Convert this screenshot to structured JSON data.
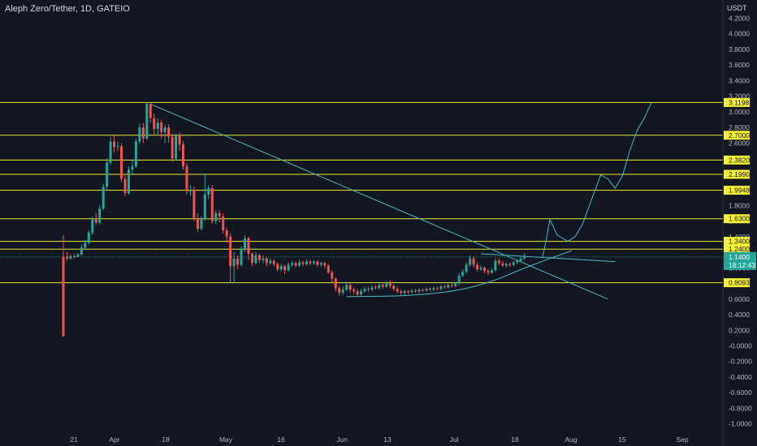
{
  "title": "Aleph Zero/Tether, 1D, GATEIO",
  "unit": "USDT",
  "colors": {
    "background": "#131722",
    "up": "#26a69a",
    "down": "#ef5350",
    "level_line": "#e8e83a",
    "level_badge": "#f5f032",
    "trend": "#4db6c4",
    "price_badge": "#26a69a",
    "axis_text": "#b2b5be"
  },
  "chart_data": {
    "type": "candlestick",
    "title": "Aleph Zero/Tether, 1D, GATEIO",
    "ylabel": "USDT",
    "ylim": [
      -1.1,
      4.5
    ],
    "y_ticks": [
      "4.2000",
      "4.0000",
      "3.8000",
      "3.6000",
      "3.4000",
      "3.2000",
      "3.0000",
      "2.8000",
      "2.6000",
      "2.4000",
      "2.2000",
      "2.0000",
      "1.8000",
      "1.6000",
      "1.4000",
      "1.2000",
      "1.0000",
      "0.8000",
      "0.6000",
      "0.4000",
      "0.2000",
      "-0.0000",
      "-0.2000",
      "-0.4000",
      "-0.6000",
      "-0.8000",
      "-1.0000"
    ],
    "x_ticks": [
      "21",
      "Apr",
      "18",
      "May",
      "16",
      "Jun",
      "13",
      "Jul",
      "18",
      "Aug",
      "15",
      "Sep"
    ],
    "horizontal_levels": [
      "3.1198",
      "2.7000",
      "2.3820",
      "2.1990",
      "1.9948",
      "1.6300",
      "1.3400",
      "1.2400",
      "0.8093"
    ],
    "current_price": {
      "price": "1.1400",
      "countdown": "16:12:43"
    },
    "candles": [
      {
        "o": 1.14,
        "c": 0.12,
        "h": 1.42,
        "l": 0.12
      },
      {
        "o": 1.14,
        "c": 1.12,
        "h": 1.2,
        "l": 1.09
      },
      {
        "o": 1.12,
        "c": 1.15,
        "h": 1.17,
        "l": 1.1
      },
      {
        "o": 1.15,
        "c": 1.14,
        "h": 1.18,
        "l": 1.12
      },
      {
        "o": 1.14,
        "c": 1.17,
        "h": 1.19,
        "l": 1.13
      },
      {
        "o": 1.17,
        "c": 1.26,
        "h": 1.3,
        "l": 1.16
      },
      {
        "o": 1.26,
        "c": 1.32,
        "h": 1.36,
        "l": 1.24
      },
      {
        "o": 1.32,
        "c": 1.45,
        "h": 1.48,
        "l": 1.3
      },
      {
        "o": 1.45,
        "c": 1.63,
        "h": 1.66,
        "l": 1.42
      },
      {
        "o": 1.63,
        "c": 1.58,
        "h": 1.7,
        "l": 1.55
      },
      {
        "o": 1.58,
        "c": 1.76,
        "h": 1.8,
        "l": 1.56
      },
      {
        "o": 1.76,
        "c": 2.04,
        "h": 2.08,
        "l": 1.74
      },
      {
        "o": 2.04,
        "c": 2.35,
        "h": 2.4,
        "l": 2.0
      },
      {
        "o": 2.35,
        "c": 2.62,
        "h": 2.68,
        "l": 2.32
      },
      {
        "o": 2.62,
        "c": 2.55,
        "h": 2.7,
        "l": 2.48
      },
      {
        "o": 2.55,
        "c": 2.56,
        "h": 2.62,
        "l": 2.5
      },
      {
        "o": 2.56,
        "c": 2.14,
        "h": 2.6,
        "l": 2.1
      },
      {
        "o": 2.14,
        "c": 1.96,
        "h": 2.2,
        "l": 1.92
      },
      {
        "o": 1.96,
        "c": 2.26,
        "h": 2.3,
        "l": 1.94
      },
      {
        "o": 2.26,
        "c": 2.3,
        "h": 2.38,
        "l": 2.2
      },
      {
        "o": 2.3,
        "c": 2.62,
        "h": 2.66,
        "l": 2.28
      },
      {
        "o": 2.62,
        "c": 2.8,
        "h": 2.85,
        "l": 2.58
      },
      {
        "o": 2.8,
        "c": 2.66,
        "h": 2.86,
        "l": 2.6
      },
      {
        "o": 2.66,
        "c": 3.1,
        "h": 3.12,
        "l": 2.64
      },
      {
        "o": 3.1,
        "c": 2.92,
        "h": 3.12,
        "l": 2.86
      },
      {
        "o": 2.92,
        "c": 2.78,
        "h": 2.98,
        "l": 2.7
      },
      {
        "o": 2.78,
        "c": 2.86,
        "h": 2.92,
        "l": 2.7
      },
      {
        "o": 2.86,
        "c": 2.74,
        "h": 2.9,
        "l": 2.66
      },
      {
        "o": 2.74,
        "c": 2.8,
        "h": 2.84,
        "l": 2.6
      },
      {
        "o": 2.8,
        "c": 2.68,
        "h": 2.84,
        "l": 2.6
      },
      {
        "o": 2.68,
        "c": 2.4,
        "h": 2.72,
        "l": 2.36
      },
      {
        "o": 2.4,
        "c": 2.7,
        "h": 2.72,
        "l": 2.38
      },
      {
        "o": 2.7,
        "c": 2.58,
        "h": 2.74,
        "l": 2.5
      },
      {
        "o": 2.58,
        "c": 2.3,
        "h": 2.62,
        "l": 2.26
      },
      {
        "o": 2.3,
        "c": 1.98,
        "h": 2.34,
        "l": 1.94
      },
      {
        "o": 1.98,
        "c": 2.0,
        "h": 2.06,
        "l": 1.92
      },
      {
        "o": 2.0,
        "c": 1.64,
        "h": 2.04,
        "l": 1.6
      },
      {
        "o": 1.64,
        "c": 1.5,
        "h": 1.7,
        "l": 1.46
      },
      {
        "o": 1.5,
        "c": 1.62,
        "h": 1.66,
        "l": 1.48
      },
      {
        "o": 1.62,
        "c": 1.94,
        "h": 2.2,
        "l": 1.6
      },
      {
        "o": 1.94,
        "c": 2.02,
        "h": 2.06,
        "l": 1.88
      },
      {
        "o": 2.02,
        "c": 1.6,
        "h": 2.06,
        "l": 1.56
      },
      {
        "o": 1.6,
        "c": 1.7,
        "h": 1.74,
        "l": 1.56
      },
      {
        "o": 1.7,
        "c": 1.66,
        "h": 1.74,
        "l": 1.58
      },
      {
        "o": 1.66,
        "c": 1.48,
        "h": 1.7,
        "l": 1.44
      },
      {
        "o": 1.48,
        "c": 1.4,
        "h": 1.52,
        "l": 1.32
      },
      {
        "o": 1.4,
        "c": 1.02,
        "h": 1.44,
        "l": 0.81
      },
      {
        "o": 1.02,
        "c": 1.12,
        "h": 1.2,
        "l": 0.81
      },
      {
        "o": 1.12,
        "c": 1.04,
        "h": 1.16,
        "l": 0.98
      },
      {
        "o": 1.04,
        "c": 1.24,
        "h": 1.28,
        "l": 1.02
      },
      {
        "o": 1.24,
        "c": 1.38,
        "h": 1.42,
        "l": 1.2
      },
      {
        "o": 1.38,
        "c": 1.18,
        "h": 1.4,
        "l": 1.1
      },
      {
        "o": 1.18,
        "c": 1.06,
        "h": 1.2,
        "l": 1.02
      },
      {
        "o": 1.06,
        "c": 1.16,
        "h": 1.2,
        "l": 1.04
      },
      {
        "o": 1.16,
        "c": 1.1,
        "h": 1.18,
        "l": 1.06
      },
      {
        "o": 1.1,
        "c": 1.12,
        "h": 1.16,
        "l": 1.06
      },
      {
        "o": 1.12,
        "c": 1.06,
        "h": 1.14,
        "l": 1.02
      },
      {
        "o": 1.06,
        "c": 1.09,
        "h": 1.12,
        "l": 1.04
      },
      {
        "o": 1.09,
        "c": 1.05,
        "h": 1.11,
        "l": 1.02
      },
      {
        "o": 1.05,
        "c": 0.98,
        "h": 1.07,
        "l": 0.95
      },
      {
        "o": 0.98,
        "c": 1.02,
        "h": 1.05,
        "l": 0.96
      },
      {
        "o": 1.02,
        "c": 0.97,
        "h": 1.04,
        "l": 0.92
      },
      {
        "o": 0.97,
        "c": 1.04,
        "h": 1.07,
        "l": 0.95
      },
      {
        "o": 1.04,
        "c": 1.06,
        "h": 1.09,
        "l": 1.01
      },
      {
        "o": 1.06,
        "c": 1.03,
        "h": 1.08,
        "l": 1.0
      },
      {
        "o": 1.03,
        "c": 1.07,
        "h": 1.1,
        "l": 1.01
      },
      {
        "o": 1.07,
        "c": 1.05,
        "h": 1.09,
        "l": 1.02
      },
      {
        "o": 1.05,
        "c": 1.08,
        "h": 1.11,
        "l": 1.03
      },
      {
        "o": 1.08,
        "c": 1.06,
        "h": 1.1,
        "l": 1.03
      },
      {
        "o": 1.06,
        "c": 1.08,
        "h": 1.1,
        "l": 1.04
      },
      {
        "o": 1.08,
        "c": 1.04,
        "h": 1.1,
        "l": 1.01
      },
      {
        "o": 1.04,
        "c": 1.06,
        "h": 1.08,
        "l": 1.01
      },
      {
        "o": 1.06,
        "c": 1.03,
        "h": 1.08,
        "l": 0.99
      },
      {
        "o": 1.03,
        "c": 0.94,
        "h": 1.05,
        "l": 0.92
      },
      {
        "o": 0.94,
        "c": 0.86,
        "h": 0.97,
        "l": 0.82
      },
      {
        "o": 0.86,
        "c": 0.74,
        "h": 0.88,
        "l": 0.7
      },
      {
        "o": 0.74,
        "c": 0.68,
        "h": 0.77,
        "l": 0.64
      },
      {
        "o": 0.68,
        "c": 0.72,
        "h": 0.76,
        "l": 0.65
      },
      {
        "o": 0.72,
        "c": 0.78,
        "h": 0.82,
        "l": 0.7
      },
      {
        "o": 0.78,
        "c": 0.72,
        "h": 0.8,
        "l": 0.68
      },
      {
        "o": 0.72,
        "c": 0.7,
        "h": 0.75,
        "l": 0.66
      },
      {
        "o": 0.7,
        "c": 0.66,
        "h": 0.73,
        "l": 0.63
      },
      {
        "o": 0.66,
        "c": 0.7,
        "h": 0.73,
        "l": 0.64
      },
      {
        "o": 0.7,
        "c": 0.73,
        "h": 0.76,
        "l": 0.68
      },
      {
        "o": 0.73,
        "c": 0.72,
        "h": 0.76,
        "l": 0.69
      },
      {
        "o": 0.72,
        "c": 0.75,
        "h": 0.78,
        "l": 0.7
      },
      {
        "o": 0.75,
        "c": 0.74,
        "h": 0.78,
        "l": 0.72
      },
      {
        "o": 0.74,
        "c": 0.78,
        "h": 0.8,
        "l": 0.72
      },
      {
        "o": 0.78,
        "c": 0.76,
        "h": 0.81,
        "l": 0.73
      },
      {
        "o": 0.76,
        "c": 0.8,
        "h": 0.83,
        "l": 0.74
      },
      {
        "o": 0.8,
        "c": 0.77,
        "h": 0.84,
        "l": 0.74
      },
      {
        "o": 0.77,
        "c": 0.73,
        "h": 0.79,
        "l": 0.7
      },
      {
        "o": 0.73,
        "c": 0.7,
        "h": 0.76,
        "l": 0.67
      },
      {
        "o": 0.7,
        "c": 0.68,
        "h": 0.72,
        "l": 0.65
      },
      {
        "o": 0.68,
        "c": 0.7,
        "h": 0.72,
        "l": 0.65
      },
      {
        "o": 0.7,
        "c": 0.69,
        "h": 0.72,
        "l": 0.66
      },
      {
        "o": 0.69,
        "c": 0.71,
        "h": 0.73,
        "l": 0.67
      },
      {
        "o": 0.71,
        "c": 0.7,
        "h": 0.73,
        "l": 0.68
      },
      {
        "o": 0.7,
        "c": 0.72,
        "h": 0.74,
        "l": 0.68
      },
      {
        "o": 0.72,
        "c": 0.71,
        "h": 0.74,
        "l": 0.69
      },
      {
        "o": 0.71,
        "c": 0.73,
        "h": 0.75,
        "l": 0.69
      },
      {
        "o": 0.73,
        "c": 0.72,
        "h": 0.75,
        "l": 0.7
      },
      {
        "o": 0.72,
        "c": 0.74,
        "h": 0.76,
        "l": 0.7
      },
      {
        "o": 0.74,
        "c": 0.73,
        "h": 0.76,
        "l": 0.71
      },
      {
        "o": 0.73,
        "c": 0.76,
        "h": 0.78,
        "l": 0.71
      },
      {
        "o": 0.76,
        "c": 0.75,
        "h": 0.78,
        "l": 0.73
      },
      {
        "o": 0.75,
        "c": 0.78,
        "h": 0.8,
        "l": 0.73
      },
      {
        "o": 0.78,
        "c": 0.77,
        "h": 0.8,
        "l": 0.75
      },
      {
        "o": 0.77,
        "c": 0.8,
        "h": 0.82,
        "l": 0.75
      },
      {
        "o": 0.8,
        "c": 0.9,
        "h": 0.93,
        "l": 0.78
      },
      {
        "o": 0.9,
        "c": 0.95,
        "h": 0.98,
        "l": 0.88
      },
      {
        "o": 0.95,
        "c": 1.04,
        "h": 1.07,
        "l": 0.93
      },
      {
        "o": 1.04,
        "c": 1.12,
        "h": 1.16,
        "l": 1.02
      },
      {
        "o": 1.12,
        "c": 1.04,
        "h": 1.15,
        "l": 1.0
      },
      {
        "o": 1.04,
        "c": 0.98,
        "h": 1.07,
        "l": 0.95
      },
      {
        "o": 0.98,
        "c": 1.0,
        "h": 1.03,
        "l": 0.96
      },
      {
        "o": 1.0,
        "c": 0.96,
        "h": 1.02,
        "l": 0.93
      },
      {
        "o": 0.96,
        "c": 0.94,
        "h": 0.99,
        "l": 0.91
      },
      {
        "o": 0.94,
        "c": 0.97,
        "h": 1.0,
        "l": 0.92
      },
      {
        "o": 0.97,
        "c": 1.09,
        "h": 1.12,
        "l": 0.95
      },
      {
        "o": 1.09,
        "c": 1.06,
        "h": 1.12,
        "l": 1.03
      },
      {
        "o": 1.06,
        "c": 1.03,
        "h": 1.09,
        "l": 1.01
      },
      {
        "o": 1.03,
        "c": 1.05,
        "h": 1.07,
        "l": 1.0
      },
      {
        "o": 1.05,
        "c": 1.04,
        "h": 1.07,
        "l": 1.01
      },
      {
        "o": 1.04,
        "c": 1.07,
        "h": 1.09,
        "l": 1.02
      },
      {
        "o": 1.07,
        "c": 1.09,
        "h": 1.11,
        "l": 1.05
      },
      {
        "o": 1.09,
        "c": 1.12,
        "h": 1.15,
        "l": 1.07
      },
      {
        "o": 1.12,
        "c": 1.14,
        "h": 1.19,
        "l": 1.1
      }
    ],
    "annotations": {
      "descending_trendline": [
        {
          "date_index": 24,
          "price": 3.1
        },
        {
          "date_index": 150,
          "price": 0.6
        }
      ],
      "rounded_bottom_curve": [
        {
          "date_index": 78,
          "price": 0.63
        },
        {
          "date_index": 95,
          "price": 0.64
        },
        {
          "date_index": 108,
          "price": 0.7
        },
        {
          "date_index": 118,
          "price": 0.82
        },
        {
          "date_index": 126,
          "price": 0.98
        },
        {
          "date_index": 134,
          "price": 1.12
        },
        {
          "date_index": 140,
          "price": 1.22
        }
      ],
      "flat_resistance": [
        {
          "date_index": 115,
          "price": 1.18
        },
        {
          "date_index": 152,
          "price": 1.08
        }
      ],
      "projection_path": [
        {
          "date_index": 132,
          "price": 1.14
        },
        {
          "date_index": 133,
          "price": 1.36
        },
        {
          "date_index": 134,
          "price": 1.62
        },
        {
          "date_index": 136,
          "price": 1.42
        },
        {
          "date_index": 139,
          "price": 1.34
        },
        {
          "date_index": 141,
          "price": 1.4
        },
        {
          "date_index": 143,
          "price": 1.56
        },
        {
          "date_index": 146,
          "price": 1.94
        },
        {
          "date_index": 148,
          "price": 2.19
        },
        {
          "date_index": 150,
          "price": 2.14
        },
        {
          "date_index": 152,
          "price": 2.02
        },
        {
          "date_index": 154,
          "price": 2.18
        },
        {
          "date_index": 156,
          "price": 2.5
        },
        {
          "date_index": 158,
          "price": 2.76
        },
        {
          "date_index": 160,
          "price": 2.92
        },
        {
          "date_index": 162,
          "price": 3.12
        }
      ]
    }
  }
}
